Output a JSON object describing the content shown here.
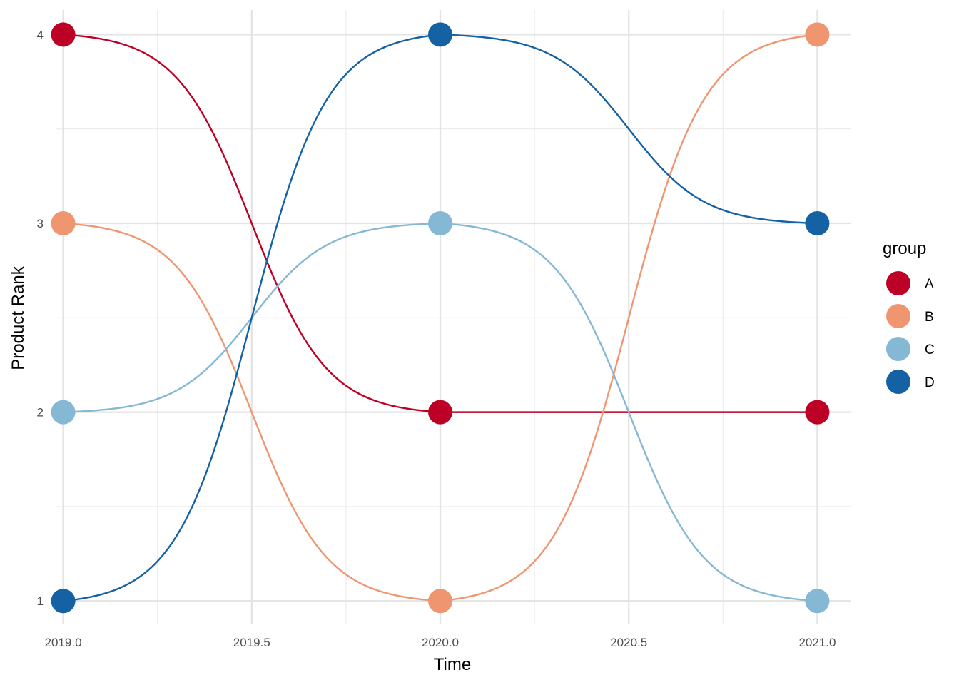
{
  "chart_data": {
    "type": "line",
    "style": "bump",
    "xlabel": "Time",
    "ylabel": "Product Rank",
    "xlim": [
      2018.98,
      2021.09
    ],
    "ylim": [
      0.88,
      4.13
    ],
    "x_ticks": [
      2019.0,
      2019.5,
      2020.0,
      2020.5,
      2021.0
    ],
    "x_tick_labels": [
      "2019.0",
      "2019.5",
      "2020.0",
      "2020.5",
      "2021.0"
    ],
    "y_ticks": [
      1,
      2,
      3,
      4
    ],
    "y_tick_labels": [
      "1",
      "2",
      "3",
      "4"
    ],
    "x_minor_ticks": [
      2019.25,
      2019.75,
      2020.25,
      2020.75
    ],
    "y_minor_ticks": [
      1.5,
      2.5,
      3.5
    ],
    "grid": true,
    "legend": {
      "title": "group",
      "position": "right"
    },
    "x": [
      2019,
      2020,
      2021
    ],
    "series": [
      {
        "name": "A",
        "color": "#BD0026",
        "values": [
          4,
          2,
          2
        ]
      },
      {
        "name": "B",
        "color": "#EF9670",
        "values": [
          3,
          1,
          4
        ]
      },
      {
        "name": "C",
        "color": "#85B8D5",
        "values": [
          2,
          3,
          1
        ]
      },
      {
        "name": "D",
        "color": "#1461A4",
        "values": [
          1,
          4,
          3
        ]
      }
    ]
  }
}
